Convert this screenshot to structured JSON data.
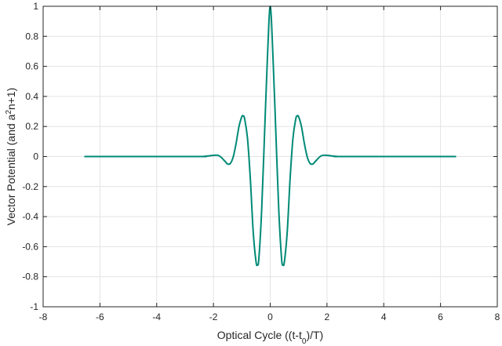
{
  "chart_data": {
    "type": "line",
    "title": "",
    "xlabel": "Optical Cycle ((t-t",
    "xlabel_sub": "0",
    "xlabel_tail": ")/T)",
    "ylabel": "Vector Potential (and a",
    "ylabel_sup": "2",
    "ylabel_tail": "n+1)",
    "xlim": [
      -8,
      8
    ],
    "ylim": [
      -1,
      1
    ],
    "xticks": [
      -8,
      -6,
      -4,
      -2,
      0,
      2,
      4,
      6,
      8
    ],
    "yticks": [
      -1,
      -0.8,
      -0.6,
      -0.4,
      -0.2,
      0,
      0.2,
      0.4,
      0.6,
      0.8,
      1
    ],
    "xtick_labels": [
      "-8",
      "-6",
      "-4",
      "-2",
      "0",
      "2",
      "4",
      "6",
      "8"
    ],
    "ytick_labels": [
      "-1",
      "-0.8",
      "-0.6",
      "-0.4",
      "-0.2",
      "0",
      "0.2",
      "0.4",
      "0.6",
      "0.8",
      "1"
    ],
    "grid": true,
    "series": [
      {
        "color": "#008a77",
        "x": [
          -6.55,
          -2.6,
          -2.4,
          -2.2,
          -2.0,
          -1.8,
          -1.6,
          -1.5,
          -1.4,
          -1.3,
          -1.2,
          -1.1,
          -1.0,
          -0.95,
          -0.9,
          -0.8,
          -0.7,
          -0.6,
          -0.5,
          -0.45,
          -0.4,
          -0.3,
          -0.2,
          -0.1,
          0,
          0.1,
          0.2,
          0.3,
          0.4,
          0.45,
          0.5,
          0.6,
          0.7,
          0.8,
          0.9,
          0.95,
          1.0,
          1.1,
          1.2,
          1.3,
          1.4,
          1.5,
          1.6,
          1.8,
          2.0,
          2.2,
          2.4,
          2.6,
          6.55
        ],
        "y": [
          0,
          0,
          0.0,
          0.003,
          0.008,
          0.005,
          -0.03,
          -0.05,
          -0.045,
          0.0,
          0.09,
          0.2,
          0.265,
          0.27,
          0.25,
          0.12,
          -0.15,
          -0.5,
          -0.7,
          -0.72,
          -0.68,
          -0.35,
          0.15,
          0.65,
          1.0,
          0.65,
          0.15,
          -0.35,
          -0.68,
          -0.72,
          -0.7,
          -0.5,
          -0.15,
          0.12,
          0.25,
          0.27,
          0.265,
          0.2,
          0.09,
          0.0,
          -0.045,
          -0.05,
          -0.03,
          0.005,
          0.008,
          0.003,
          0.0,
          0,
          0
        ]
      }
    ]
  }
}
